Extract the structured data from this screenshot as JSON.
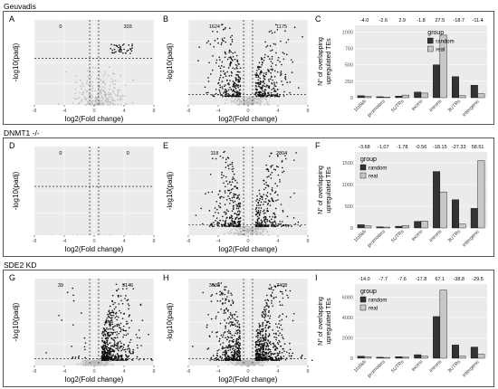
{
  "sections": [
    {
      "title": "Geuvadis",
      "panels": {
        "volcano1": {
          "letter": "A",
          "down": "0",
          "up": "303",
          "density": "low"
        },
        "volcano2": {
          "letter": "B",
          "down": "1624",
          "up": "1175",
          "density": "mid"
        },
        "bar": {
          "letter": "C"
        }
      }
    },
    {
      "title": "DNMT1 -/-",
      "panels": {
        "volcano1": {
          "letter": "D",
          "down": "0",
          "up": "0",
          "density": "none"
        },
        "volcano2": {
          "letter": "E",
          "down": "118",
          "up": "2804",
          "density": "mid"
        },
        "bar": {
          "letter": "F"
        }
      }
    },
    {
      "title": "SDE2 KD",
      "panels": {
        "volcano1": {
          "letter": "G",
          "down": "39",
          "up": "9146",
          "density": "high"
        },
        "volcano2": {
          "letter": "H",
          "down": "3038",
          "up": "7408",
          "density": "high"
        },
        "bar": {
          "letter": "I"
        }
      }
    }
  ],
  "volcano_axes": {
    "xlabel": "log2(Fold change)",
    "ylabel": "-log10(padj)",
    "x_ticks": [
      "-8",
      "-4",
      "0",
      "4",
      "8"
    ]
  },
  "bar_axes": {
    "ylabel_line1": "N° of overlapping",
    "ylabel_line2": "upregulated TEs",
    "legend_title": "group",
    "legend_items": [
      "random",
      "real"
    ]
  },
  "colors": {
    "random": "#333333",
    "real": "#c8c8c8",
    "panel_bg": "#ebebeb",
    "points_up": "#111111",
    "points_ns": "#bbbbbb"
  },
  "chart_data": [
    {
      "type": "bar",
      "title": "C",
      "categories": [
        "1to5kb",
        "promoters",
        "5UTRs",
        "exons",
        "introns",
        "3UTRs",
        "intergenic"
      ],
      "series": [
        {
          "name": "random",
          "values": [
            30,
            15,
            25,
            85,
            500,
            320,
            190
          ]
        },
        {
          "name": "real",
          "values": [
            20,
            10,
            40,
            70,
            950,
            30,
            60
          ]
        }
      ],
      "annotations": [
        "-4.0",
        "-2.6",
        "2.9",
        "-1.8",
        "27.5",
        "-18.7",
        "-11.4"
      ],
      "yticks": [
        "0",
        "250",
        "500",
        "750",
        "1000"
      ],
      "ylim": [
        0,
        1100
      ],
      "legend": "top-right"
    },
    {
      "type": "bar",
      "title": "F",
      "categories": [
        "1to5kb",
        "promoters",
        "5UTRs",
        "exons",
        "introns",
        "3UTRs",
        "intergenic"
      ],
      "series": [
        {
          "name": "random",
          "values": [
            75,
            25,
            40,
            150,
            1300,
            650,
            450
          ]
        },
        {
          "name": "real",
          "values": [
            50,
            20,
            55,
            160,
            830,
            90,
            1550
          ]
        }
      ],
      "annotations": [
        "-3.68",
        "-1.07",
        "-1.78",
        "-0.56",
        "-18.15",
        "-27.33",
        "58.51"
      ],
      "yticks": [
        "0",
        "500",
        "1000",
        "1500"
      ],
      "ylim": [
        0,
        1750
      ],
      "legend": "top-left"
    },
    {
      "type": "bar",
      "title": "I",
      "categories": [
        "1to5kb",
        "promoters",
        "5UTRs",
        "exons",
        "introns",
        "3UTRs",
        "intergenic"
      ],
      "series": [
        {
          "name": "random",
          "values": [
            200,
            100,
            150,
            350,
            4100,
            1300,
            1100
          ]
        },
        {
          "name": "real",
          "values": [
            150,
            80,
            100,
            200,
            6700,
            200,
            400
          ]
        }
      ],
      "annotations": [
        "-14.0",
        "-7.7",
        "-7.6",
        "-17.8",
        "67.1",
        "-38.8",
        "-29.5"
      ],
      "yticks": [
        "0",
        "2000",
        "4000",
        "6000"
      ],
      "ylim": [
        0,
        7300
      ],
      "legend": "top-left"
    }
  ]
}
